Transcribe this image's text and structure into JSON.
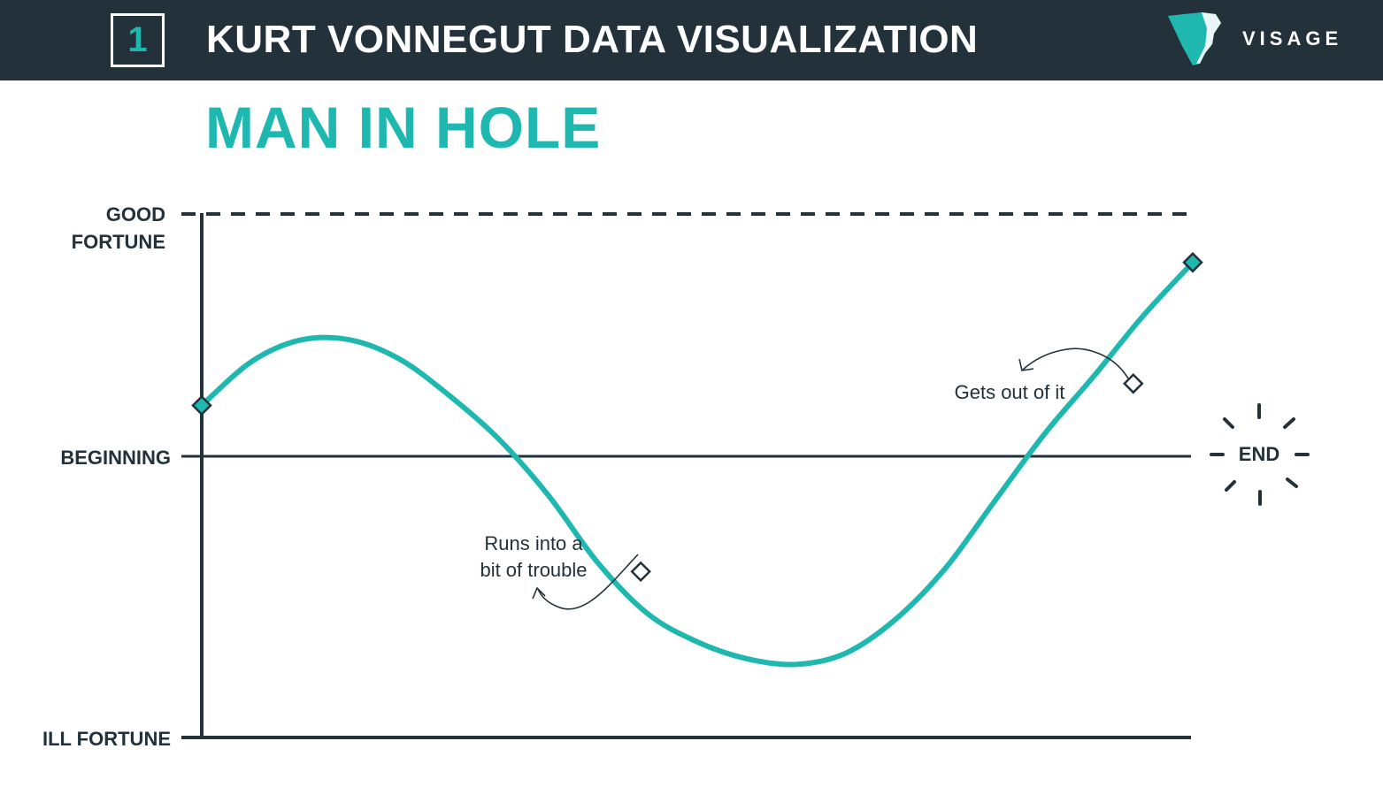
{
  "header": {
    "number": "1",
    "title": "KURT VONNEGUT DATA VISUALIZATION",
    "brand": "VISAGE",
    "background": "#22313a"
  },
  "chart_data": {
    "type": "line",
    "title": "MAN IN HOLE",
    "accent_color": "#1fb8b0",
    "y_axis": {
      "levels": [
        {
          "name": "GOOD FORTUNE",
          "lines": [
            "GOOD",
            "FORTUNE"
          ],
          "value": 1
        },
        {
          "name": "BEGINNING",
          "lines": [
            "BEGINNING"
          ],
          "value": 0
        },
        {
          "name": "ILL FORTUNE",
          "lines": [
            "ILL FORTUNE"
          ],
          "value": -1
        }
      ],
      "ylim": [
        -1,
        1
      ]
    },
    "xlim": [
      0,
      1
    ],
    "series": [
      {
        "x": [
          0,
          0.05,
          0.1,
          0.15,
          0.2,
          0.25,
          0.3,
          0.35,
          0.4,
          0.45,
          0.5,
          0.55,
          0.6,
          0.65,
          0.7,
          0.75,
          0.8,
          0.85,
          0.9,
          0.95,
          1.0
        ],
        "values": [
          0.21,
          0.39,
          0.48,
          0.48,
          0.4,
          0.25,
          0.07,
          -0.14,
          -0.38,
          -0.56,
          -0.66,
          -0.72,
          -0.74,
          -0.7,
          -0.58,
          -0.4,
          -0.16,
          0.09,
          0.33,
          0.58,
          0.8
        ]
      }
    ],
    "markers": [
      {
        "x": 0.0,
        "y": 0.21,
        "style": "filled"
      },
      {
        "x": 0.443,
        "y": -0.41,
        "style": "hollow"
      },
      {
        "x": 0.94,
        "y": 0.3,
        "style": "hollow"
      },
      {
        "x": 1.0,
        "y": 0.8,
        "style": "filled"
      }
    ],
    "annotations": [
      {
        "lines": [
          "Runs into a",
          "bit of trouble"
        ]
      },
      {
        "lines": [
          "Gets out of it"
        ]
      }
    ],
    "end_label": "END"
  }
}
